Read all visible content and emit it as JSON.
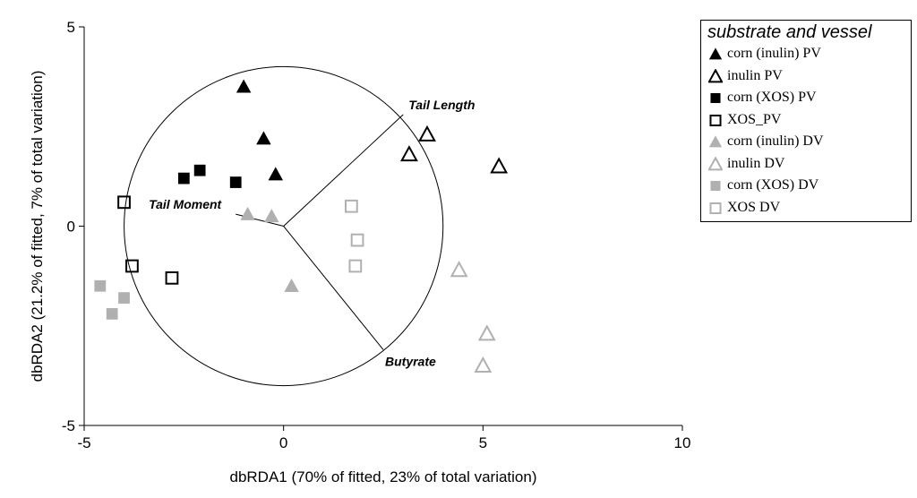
{
  "chart_data": {
    "type": "scatter",
    "title": "",
    "xlabel": "dbRDA1 (70% of fitted, 23% of total variation)",
    "ylabel": "dbRDA2 (21.2% of fitted, 7% of total variation)",
    "xlim": [
      -5,
      10
    ],
    "ylim": [
      -5,
      5
    ],
    "xticks": [
      "-5",
      "0",
      "5",
      "10"
    ],
    "yticks": [
      "-5",
      "0",
      "5"
    ],
    "grid": false,
    "legend_position": "top-right",
    "legend_title": "substrate and vessel",
    "correlation_circle": {
      "center": [
        0,
        0
      ],
      "radius": 4
    },
    "vectors": [
      {
        "name": "Tail Length",
        "x": 3.0,
        "y": 2.8
      },
      {
        "name": "Tail Moment",
        "x": -1.2,
        "y": 0.3
      },
      {
        "name": "Butyrate",
        "x": 2.5,
        "y": -3.1
      }
    ],
    "series": [
      {
        "name": "corn (inulin) PV",
        "marker": "triangle",
        "filled": true,
        "color": "#000000",
        "points": [
          [
            -1.0,
            3.5
          ],
          [
            -0.5,
            2.2
          ],
          [
            -0.2,
            1.3
          ]
        ]
      },
      {
        "name": "inulin PV",
        "marker": "triangle",
        "filled": false,
        "color": "#000000",
        "points": [
          [
            3.6,
            2.3
          ],
          [
            3.15,
            1.8
          ],
          [
            5.4,
            1.5
          ]
        ]
      },
      {
        "name": "corn (XOS) PV",
        "marker": "square",
        "filled": true,
        "color": "#000000",
        "points": [
          [
            -2.1,
            1.4
          ],
          [
            -2.5,
            1.2
          ],
          [
            -1.2,
            1.1
          ]
        ]
      },
      {
        "name": "XOS_PV",
        "marker": "square",
        "filled": false,
        "color": "#000000",
        "points": [
          [
            -4.0,
            0.6
          ],
          [
            -3.8,
            -1.0
          ],
          [
            -2.8,
            -1.3
          ]
        ]
      },
      {
        "name": "corn (inulin) DV",
        "marker": "triangle",
        "filled": true,
        "color": "#b0b0b0",
        "points": [
          [
            -0.9,
            0.3
          ],
          [
            -0.3,
            0.25
          ],
          [
            0.2,
            -1.5
          ]
        ]
      },
      {
        "name": "inulin DV",
        "marker": "triangle",
        "filled": false,
        "color": "#b0b0b0",
        "points": [
          [
            4.4,
            -1.1
          ],
          [
            5.1,
            -2.7
          ],
          [
            5.0,
            -3.5
          ]
        ]
      },
      {
        "name": "corn (XOS) DV",
        "marker": "square",
        "filled": true,
        "color": "#b0b0b0",
        "points": [
          [
            -4.6,
            -1.5
          ],
          [
            -4.0,
            -1.8
          ],
          [
            -4.3,
            -2.2
          ]
        ]
      },
      {
        "name": "XOS DV",
        "marker": "square",
        "filled": false,
        "color": "#b0b0b0",
        "points": [
          [
            1.7,
            0.5
          ],
          [
            1.85,
            -0.35
          ],
          [
            1.8,
            -1.0
          ]
        ]
      }
    ]
  }
}
